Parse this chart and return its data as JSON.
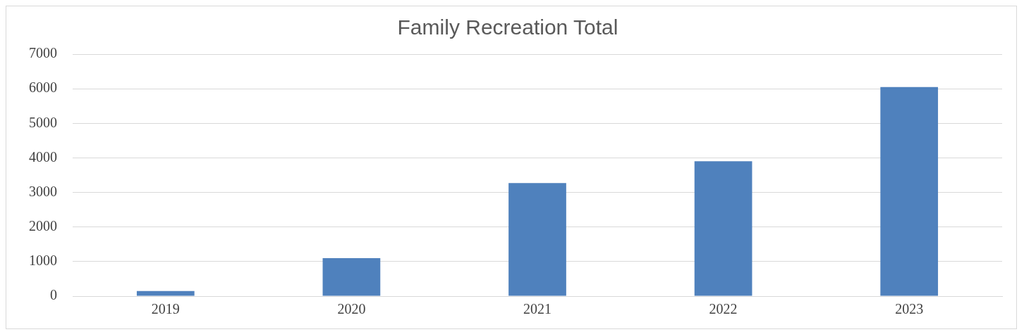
{
  "chart_data": {
    "type": "bar",
    "title": "Family Recreation Total",
    "categories": [
      "2019",
      "2020",
      "2021",
      "2022",
      "2023"
    ],
    "values": [
      150,
      1100,
      3270,
      3900,
      6050
    ],
    "color": "#4f81bd",
    "ylim": [
      0,
      7000
    ],
    "yticks": [
      0,
      1000,
      2000,
      3000,
      4000,
      5000,
      6000,
      7000
    ],
    "grid": "y",
    "legend": false
  }
}
